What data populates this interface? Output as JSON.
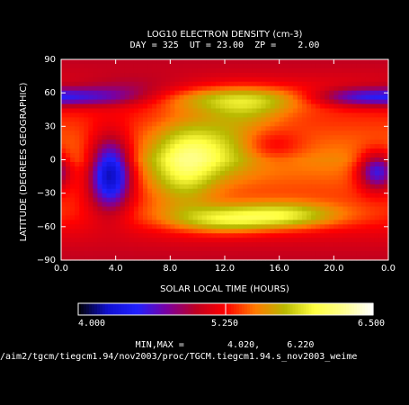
{
  "chart_data": {
    "type": "heatmap",
    "title": "LOG10 ELECTRON DENSITY (cm-3)",
    "subtitle": "DAY = 325  UT = 23.00  ZP =    2.00",
    "xlabel": "SOLAR LOCAL TIME (HOURS)",
    "ylabel": "LATITUDE (DEGREES GEOGRAPHIC)",
    "xlim": [
      0,
      24
    ],
    "ylim": [
      -90,
      90
    ],
    "x_ticks": [
      "0.0",
      "4.0",
      "8.0",
      "12.0",
      "16.0",
      "20.0",
      "0.0"
    ],
    "y_ticks": [
      "90",
      "60",
      "30",
      "0",
      "−30",
      "−60",
      "−90"
    ],
    "colorbar": {
      "min_label": "4.000",
      "mid_label": "5.250",
      "max_label": "6.500",
      "range": [
        4.0,
        6.5
      ]
    },
    "minmax_text": "MIN,MAX =        4.020,     6.220",
    "data_min": 4.02,
    "data_max": 6.22,
    "file_path": "/aim2/tgcm/tiegcm1.94/nov2003/proc/TGCM.tiegcm1.94.s_nov2003_weime",
    "grid": false,
    "legend": "bottom",
    "features": [
      {
        "slt": 3.8,
        "lat": -12,
        "value": 4.1
      },
      {
        "slt": 23.0,
        "lat": -10,
        "value": 4.5
      },
      {
        "slt": 2.0,
        "lat": 56,
        "value": 5.0
      },
      {
        "slt": 21.0,
        "lat": 56,
        "value": 4.9
      },
      {
        "slt": 12.0,
        "lat": -48,
        "value": 6.1
      },
      {
        "slt": 13.0,
        "lat": 45,
        "value": 6.05
      },
      {
        "slt": 11.5,
        "lat": 5,
        "value": 6.15
      },
      {
        "slt": 15.5,
        "lat": 12,
        "value": 5.6
      }
    ]
  },
  "colors": {
    "background": "#000000",
    "text": "#ffffff",
    "colormap": [
      "#000000",
      "#1010d0",
      "#2020ff",
      "#7a00a0",
      "#c00020",
      "#ff0000",
      "#ff7a00",
      "#b8b800",
      "#ffff40",
      "#ffff90",
      "#ffffff"
    ]
  }
}
